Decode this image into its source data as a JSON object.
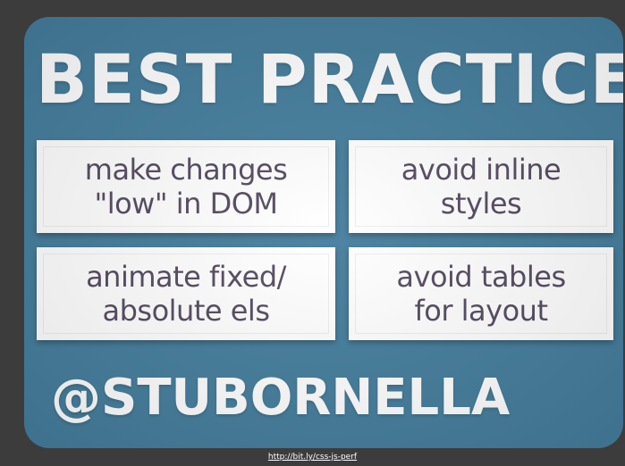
{
  "slide": {
    "title": "BEST PRACTICES",
    "cards": [
      {
        "text": "make changes\n\"low\" in DOM"
      },
      {
        "text": "avoid inline\nstyles"
      },
      {
        "text": "animate fixed/\nabsolute els"
      },
      {
        "text": "avoid tables\nfor layout"
      }
    ],
    "handle": "@STUBORNELLA"
  },
  "footer": {
    "link_text": "http://bit.ly/css-js-perf"
  },
  "colors": {
    "page_background": "#3c3c3c",
    "slide_background": "#457e9d",
    "card_background": "#ffffff",
    "card_text": "#554b61",
    "heading_text": "#ffffff"
  }
}
